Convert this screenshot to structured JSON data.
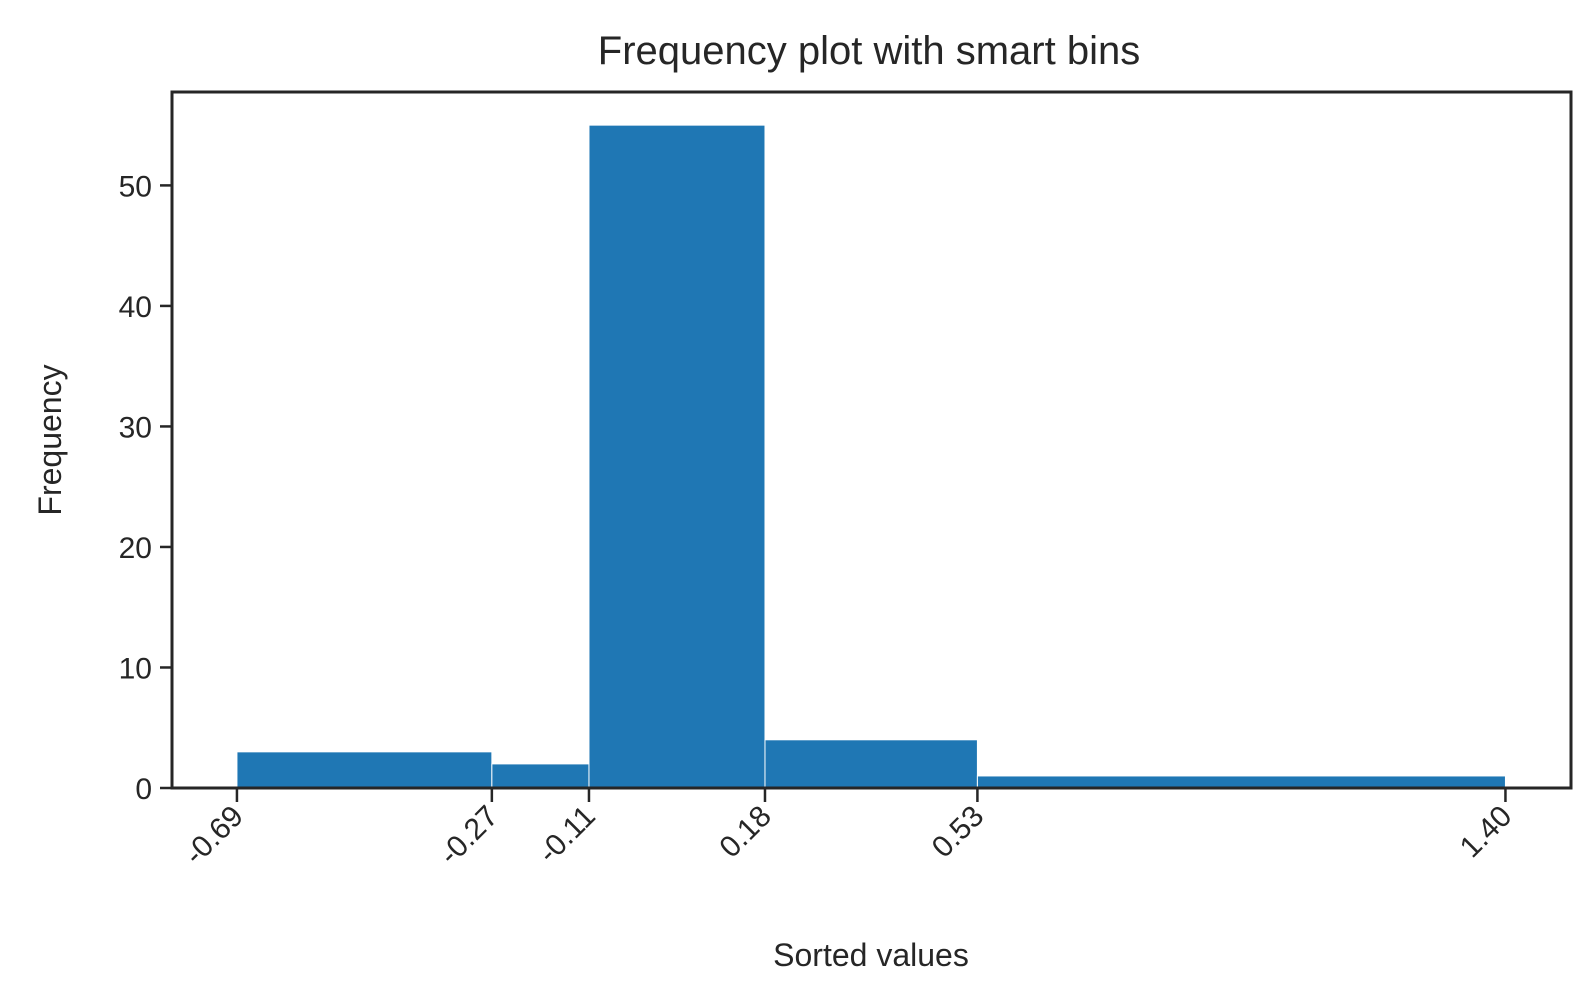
{
  "chart_data": {
    "type": "bar",
    "title": "Frequency plot with smart bins",
    "xlabel": "Sorted values",
    "ylabel": "Frequency",
    "bin_edges": [
      -0.69,
      -0.27,
      -0.11,
      0.18,
      0.53,
      1.4
    ],
    "x_tick_labels": [
      "-0.69",
      "-0.27",
      "-0.11",
      "0.18",
      "0.53",
      "1.40"
    ],
    "values": [
      3,
      2,
      55,
      4,
      1
    ],
    "xlim": [
      -0.797,
      1.508
    ],
    "ylim": [
      0,
      57.75
    ],
    "y_ticks": [
      0,
      10,
      20,
      30,
      40,
      50
    ],
    "grid": false,
    "bar_color": "#1f77b4"
  }
}
